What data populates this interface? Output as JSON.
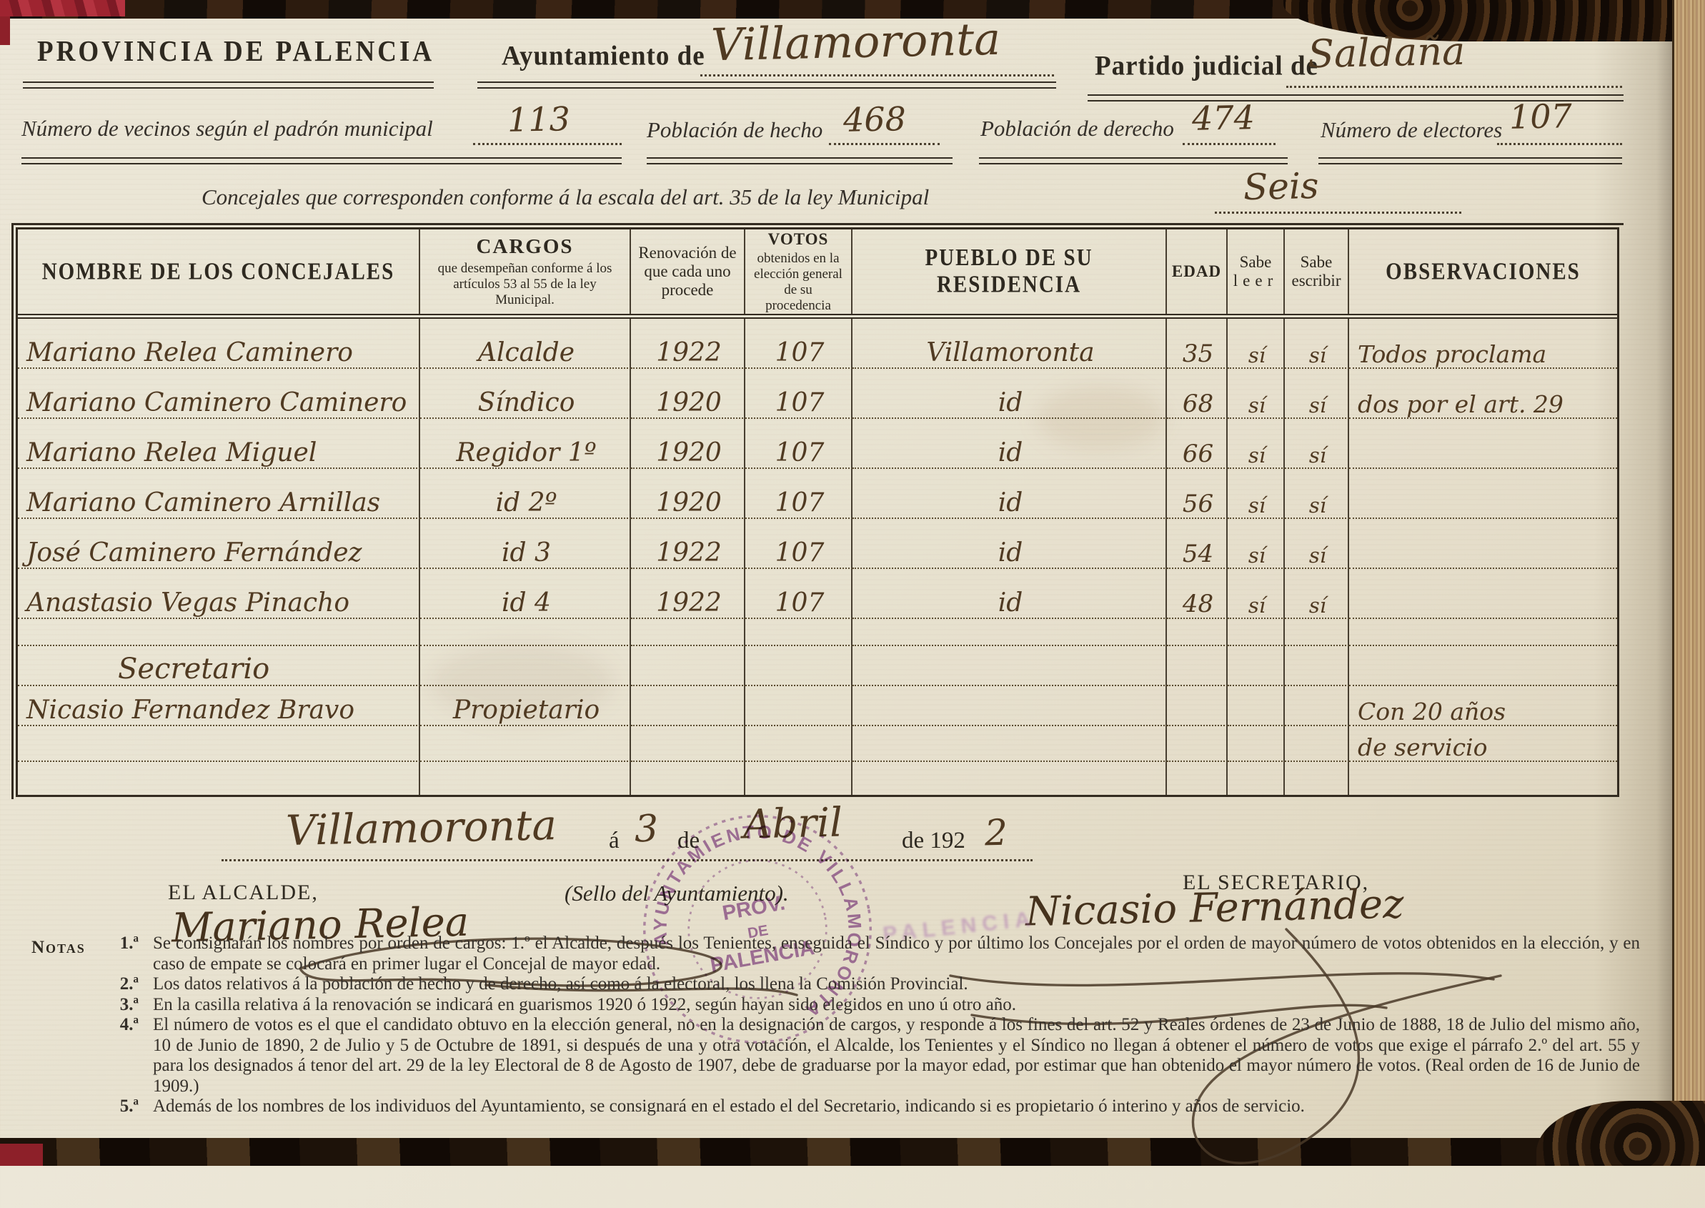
{
  "doc": {
    "province": "PROVINCIA DE PALENCIA",
    "ayuntamiento_label": "Ayuntamiento de",
    "ayuntamiento_value": "Villamoronta",
    "partido_label": "Partido judicial de",
    "partido_value": "Saldaña",
    "vecinos_label": "Número de vecinos según el padrón municipal",
    "vecinos_value": "113",
    "hecho_label": "Población de hecho",
    "hecho_value": "468",
    "derecho_label": "Población de derecho",
    "derecho_value": "474",
    "electores_label": "Número de electores",
    "electores_value": "107",
    "concejales_label": "Concejales que corresponden conforme á la escala del art. 35 de la ley Municipal",
    "concejales_value": "Seis"
  },
  "table": {
    "headers": {
      "nombre": "NOMBRE DE LOS CONCEJALES",
      "cargos_title": "CARGOS",
      "cargos_sub": "que desempeñan conforme á los artículos 53 al 55 de la ley Municipal.",
      "renovacion": "Renovación de que cada uno procede",
      "votos_title": "VOTOS",
      "votos_sub": "obtenidos en la elección general de su procedencia",
      "pueblo": "PUEBLO DE SU RESIDENCIA",
      "edad": "EDAD",
      "leer_1": "Sabe",
      "leer_2": "leer",
      "escribir_1": "Sabe",
      "escribir_2": "escribir",
      "observaciones": "OBSERVACIONES"
    },
    "rows": [
      {
        "h": 70,
        "nombre": "Mariano Relea Caminero",
        "cargo": "Alcalde",
        "renovacion": "1922",
        "votos": "107",
        "pueblo": "Villamoronta",
        "edad": "35",
        "leer": "sí",
        "escribir": "sí",
        "obs": "Todos proclama"
      },
      {
        "h": 70,
        "nombre": "Mariano Caminero Caminero",
        "cargo": "Síndico",
        "renovacion": "1920",
        "votos": "107",
        "pueblo": "id",
        "edad": "68",
        "leer": "sí",
        "escribir": "sí",
        "obs": "dos por el art. 29"
      },
      {
        "h": 70,
        "nombre": "Mariano Relea Miguel",
        "cargo": "Regidor 1º",
        "renovacion": "1920",
        "votos": "107",
        "pueblo": "id",
        "edad": "66",
        "leer": "sí",
        "escribir": "sí",
        "obs": ""
      },
      {
        "h": 70,
        "nombre": "Mariano Caminero Arnillas",
        "cargo": "id 2º",
        "renovacion": "1920",
        "votos": "107",
        "pueblo": "id",
        "edad": "56",
        "leer": "sí",
        "escribir": "sí",
        "obs": ""
      },
      {
        "h": 70,
        "nombre": "José Caminero Fernández",
        "cargo": "id 3",
        "renovacion": "1922",
        "votos": "107",
        "pueblo": "id",
        "edad": "54",
        "leer": "sí",
        "escribir": "sí",
        "obs": ""
      },
      {
        "h": 70,
        "nombre": "Anastasio Vegas Pinacho",
        "cargo": "id 4",
        "renovacion": "1922",
        "votos": "107",
        "pueblo": "id",
        "edad": "48",
        "leer": "sí",
        "escribir": "sí",
        "obs": ""
      },
      {
        "h": 38,
        "cls": "blank"
      },
      {
        "h": 56,
        "cls": "section",
        "nombre": "Secretario"
      },
      {
        "h": 56,
        "nombre": "Nicasio Fernandez Bravo",
        "cargo": "Propietario",
        "obs": "Con 20 años"
      },
      {
        "h": 50,
        "cls": "blank",
        "obs": "de servicio"
      },
      {
        "h": 46,
        "cls": "blank"
      }
    ]
  },
  "dateline": {
    "place": "Villamoronta",
    "a_label": "á",
    "day": "3",
    "de_label": "de",
    "month": "Abril",
    "year_printed": "de 192",
    "year_digit": "2"
  },
  "signatures": {
    "alcalde_label": "EL ALCALDE,",
    "sello_label": "(Sello del Ayuntamiento).",
    "secretario_label": "EL SECRETARIO,",
    "alcalde_name": "Mariano Relea",
    "secretario_name": "Nicasio Fernández"
  },
  "stamp": {
    "ring": "AYUNTAMIENTO DE VILLAMORONTA",
    "center_1": "PROV.",
    "center_2": "DE",
    "center_3": "PALENCIA",
    "ghost": "PALENCIA",
    "ink_color": "#8d4b9b"
  },
  "notes": {
    "label": "Notas",
    "items": [
      {
        "num": "1.ª",
        "text": "Se consignarán los nombres por orden de cargos: 1.º el Alcalde, después los Tenientes, enseguida el Síndico y por último los Concejales por el orden de mayor número de votos obtenidos en la elección, y en caso de empate se colocará en primer lugar el Concejal de mayor edad."
      },
      {
        "num": "2.ª",
        "text": "Los datos relativos á la población de hecho y de derecho, así como á la electoral, los llena la Comisión Provincial."
      },
      {
        "num": "3.ª",
        "text": "En la casilla relativa á la renovación se indicará en guarismos 1920 ó 1922, según hayan sido elegidos en uno ú otro año."
      },
      {
        "num": "4.ª",
        "text": "El número de votos es el que el candidato obtuvo en la elección general, no en la designación de cargos, y responde á los fines del art. 52 y Reales órdenes de 23 de Junio de 1888, 18 de Julio del mismo año, 10 de Junio de 1890, 2 de Julio y 5 de Octubre de 1891, si después de una y otra votación, el Alcalde, los Tenientes y el Síndico no llegan á obtener el número de votos que exige el párrafo 2.º del art. 55 y para los designados á tenor del art. 29 de la ley Electoral de 8 de Agosto de 1907, debe de graduarse por la mayor edad, por estimar que han obtenido el mayor número de votos. (Real orden de 16 de Junio de 1909.)"
      },
      {
        "num": "5.ª",
        "text": "Además de los nombres de los individuos del Ayuntamiento, se consignará en el estado el del Secretario, indicando si es propietario ó interino y años de servicio."
      }
    ]
  }
}
